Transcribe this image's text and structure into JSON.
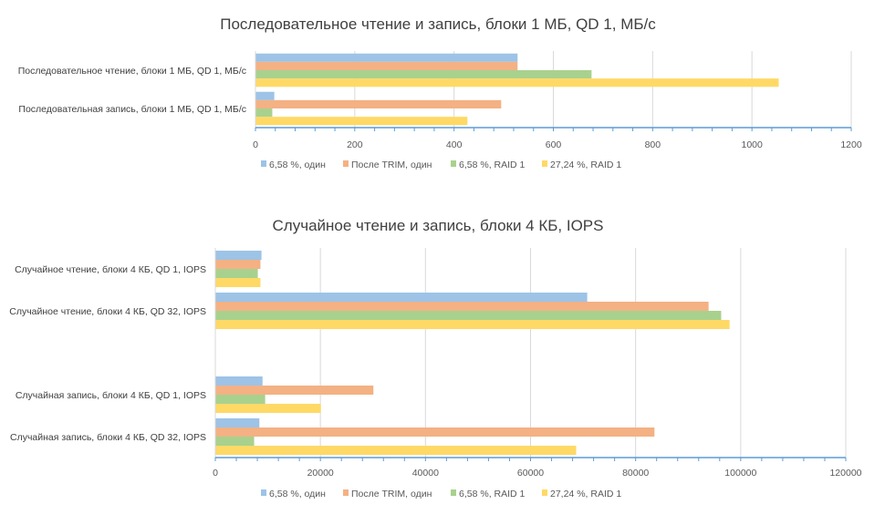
{
  "series_colors": {
    "6,58 %, один": "#9dc3e6",
    "После TRIM, один": "#f4b183",
    "6,58 %, RAID 1": "#a9d18e",
    "27,24 %, RAID 1": "#ffd966"
  },
  "chart_data": [
    {
      "type": "bar",
      "orientation": "horizontal",
      "title": "Последовательное чтение и запись, блоки 1 МБ, QD 1, МБ/с",
      "categories": [
        "Последовательное чтение, блоки 1 МБ, QD 1, МБ/с",
        "Последовательная запись, блоки 1 МБ, QD 1, МБ/с"
      ],
      "series": [
        {
          "name": "6,58 %, один",
          "values": [
            527,
            37
          ]
        },
        {
          "name": "После TRIM, один",
          "values": [
            527,
            494
          ]
        },
        {
          "name": "6,58 %, RAID 1",
          "values": [
            676,
            33
          ]
        },
        {
          "name": "27,24 %, RAID 1",
          "values": [
            1053,
            426
          ]
        }
      ],
      "xlim": [
        0,
        1200
      ],
      "ticks": [
        "0",
        "200",
        "400",
        "600",
        "800",
        "1000",
        "1200"
      ],
      "grid": true,
      "legend": "bottom"
    },
    {
      "type": "bar",
      "orientation": "horizontal",
      "title": "Случайное чтение и запись, блоки 4 КБ, IOPS",
      "categories": [
        "Случайное чтение, блоки 4 КБ, QD 1, IOPS",
        "Случайное чтение, блоки 4 КБ, QD 32, IOPS",
        "",
        "Случайная запись, блоки 4 КБ, QD 1, IOPS",
        "Случайная запись, блоки 4 КБ, QD 32, IOPS"
      ],
      "series": [
        {
          "name": "6,58 %, один",
          "values": [
            8700,
            70700,
            null,
            8900,
            8300
          ]
        },
        {
          "name": "После TRIM, один",
          "values": [
            8500,
            93800,
            null,
            30000,
            83500
          ]
        },
        {
          "name": "6,58 %, RAID 1",
          "values": [
            8000,
            96200,
            null,
            9400,
            7300
          ]
        },
        {
          "name": "27,24 %, RAID 1",
          "values": [
            8500,
            97800,
            null,
            20000,
            68600
          ]
        }
      ],
      "xlim": [
        0,
        120000
      ],
      "ticks": [
        "0",
        "20000",
        "40000",
        "60000",
        "80000",
        "100000",
        "120000"
      ],
      "grid": true,
      "legend": "bottom"
    }
  ]
}
